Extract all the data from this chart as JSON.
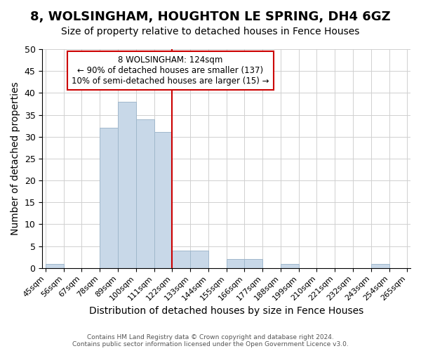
{
  "title": "8, WOLSINGHAM, HOUGHTON LE SPRING, DH4 6GZ",
  "subtitle": "Size of property relative to detached houses in Fence Houses",
  "xlabel": "Distribution of detached houses by size in Fence Houses",
  "ylabel": "Number of detached properties",
  "bin_edges": [
    45,
    56,
    67,
    78,
    89,
    100,
    111,
    122,
    133,
    144,
    155,
    166,
    177,
    188,
    199,
    210,
    221,
    232,
    243,
    254,
    265
  ],
  "bin_counts": [
    1,
    0,
    0,
    32,
    38,
    34,
    31,
    4,
    4,
    0,
    2,
    2,
    0,
    1,
    0,
    0,
    0,
    0,
    1,
    0
  ],
  "bar_color": "#c8d8e8",
  "bar_edge_color": "#a0b8cc",
  "vline_x": 122,
  "vline_color": "#cc0000",
  "ylim": [
    0,
    50
  ],
  "yticks": [
    0,
    5,
    10,
    15,
    20,
    25,
    30,
    35,
    40,
    45,
    50
  ],
  "annotation_text": "8 WOLSINGHAM: 124sqm\n← 90% of detached houses are smaller (137)\n10% of semi-detached houses are larger (15) →",
  "annotation_box_color": "#ffffff",
  "annotation_box_edge_color": "#cc0000",
  "footer_line1": "Contains HM Land Registry data © Crown copyright and database right 2024.",
  "footer_line2": "Contains public sector information licensed under the Open Government Licence v3.0.",
  "title_fontsize": 13,
  "subtitle_fontsize": 10,
  "tick_label_fontsize": 8,
  "ylabel_fontsize": 10,
  "xlabel_fontsize": 10
}
